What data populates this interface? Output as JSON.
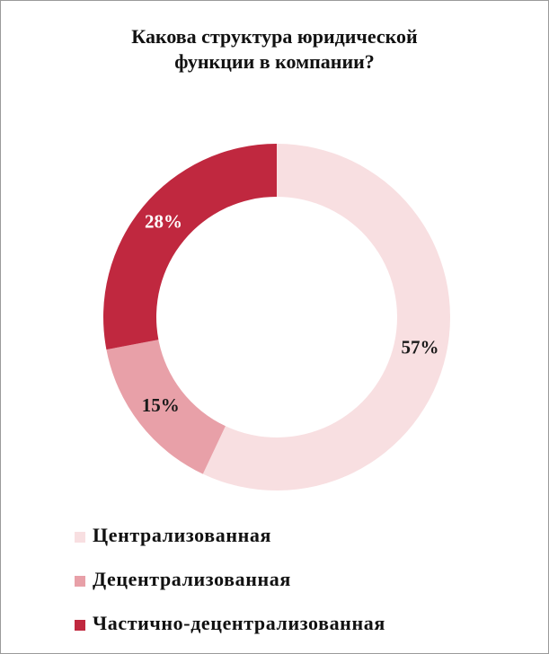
{
  "chart_data": {
    "type": "donut",
    "title": "Какова структура юридической функции в компании?",
    "categories": [
      "Централизованная",
      "Децентрализованная",
      "Частично-децентрализованная"
    ],
    "values": [
      57,
      15,
      28
    ],
    "value_labels": [
      "57%",
      "15%",
      "28%"
    ],
    "colors": [
      "#f8dfe1",
      "#e8a0a8",
      "#c0283f"
    ],
    "label_colors": [
      "#1a1a1a",
      "#1a1a1a",
      "#ffffff"
    ],
    "legend": "bottom"
  }
}
